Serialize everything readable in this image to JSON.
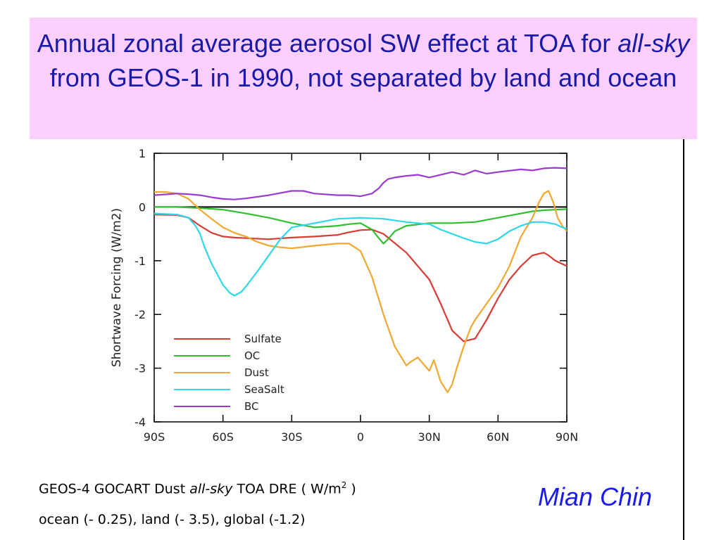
{
  "slide": {
    "title_part1": "Annual zonal average aerosol SW effect at TOA for",
    "title_italic": "all-sky",
    "title_part2": "from GEOS-1 in 1990, not separated by land and ocean",
    "caption_line1_a": "GEOS-4 GOCART Dust",
    "caption_line1_italic": "all-sky",
    "caption_line1_b": "TOA DRE ( W/m",
    "caption_line1_sup": "2",
    "caption_line1_c": " )",
    "caption_line2": "ocean (- 0.25),  land (- 3.5),  global (-1.2)",
    "author": "Mian Chin"
  },
  "chart_data": {
    "type": "line",
    "ylabel": "Shortwave Forcing (W/m2)",
    "xlim": [
      -90,
      90
    ],
    "ylim": [
      -4,
      1
    ],
    "x_ticks": [
      -90,
      -60,
      -30,
      0,
      30,
      60,
      90
    ],
    "x_tick_labels": [
      "90S",
      "60S",
      "30S",
      "0",
      "30N",
      "60N",
      "90N"
    ],
    "y_ticks": [
      1,
      0,
      -1,
      -2,
      -3,
      -4
    ],
    "y_tick_labels": [
      "1",
      "0",
      "-1",
      "-2",
      "-3",
      "-4"
    ],
    "legend_position": "lower-left",
    "series": [
      {
        "name": "Sulfate",
        "color": "#d93b35",
        "x": [
          -90,
          -80,
          -75,
          -70,
          -65,
          -60,
          -55,
          -50,
          -40,
          -30,
          -20,
          -10,
          -5,
          0,
          5,
          10,
          20,
          30,
          35,
          40,
          45,
          50,
          55,
          60,
          65,
          70,
          75,
          80,
          82,
          85,
          90
        ],
        "y": [
          -0.14,
          -0.15,
          -0.2,
          -0.35,
          -0.48,
          -0.55,
          -0.57,
          -0.58,
          -0.6,
          -0.57,
          -0.55,
          -0.52,
          -0.47,
          -0.43,
          -0.42,
          -0.5,
          -0.85,
          -1.35,
          -1.8,
          -2.3,
          -2.5,
          -2.45,
          -2.1,
          -1.7,
          -1.35,
          -1.1,
          -0.9,
          -0.85,
          -0.9,
          -1.0,
          -1.1
        ]
      },
      {
        "name": "OC",
        "color": "#2ec02e",
        "x": [
          -90,
          -80,
          -70,
          -60,
          -50,
          -40,
          -30,
          -20,
          -10,
          -5,
          0,
          5,
          8,
          10,
          12,
          15,
          20,
          30,
          40,
          50,
          60,
          70,
          75,
          80,
          85,
          90
        ],
        "y": [
          0.0,
          0.0,
          -0.02,
          -0.05,
          -0.12,
          -0.2,
          -0.3,
          -0.38,
          -0.35,
          -0.32,
          -0.3,
          -0.42,
          -0.58,
          -0.68,
          -0.6,
          -0.45,
          -0.35,
          -0.3,
          -0.3,
          -0.28,
          -0.2,
          -0.12,
          -0.08,
          -0.06,
          -0.05,
          -0.04
        ]
      },
      {
        "name": "Dust",
        "color": "#f0a830",
        "x": [
          -90,
          -85,
          -80,
          -75,
          -70,
          -65,
          -60,
          -55,
          -50,
          -45,
          -40,
          -35,
          -30,
          -20,
          -15,
          -10,
          -5,
          0,
          5,
          10,
          15,
          20,
          22,
          25,
          27,
          30,
          32,
          35,
          38,
          40,
          42,
          45,
          48,
          50,
          55,
          60,
          65,
          70,
          75,
          78,
          80,
          82,
          84,
          86,
          88,
          90
        ],
        "y": [
          0.28,
          0.28,
          0.25,
          0.15,
          -0.05,
          -0.22,
          -0.38,
          -0.48,
          -0.55,
          -0.65,
          -0.72,
          -0.75,
          -0.77,
          -0.72,
          -0.7,
          -0.68,
          -0.68,
          -0.82,
          -1.3,
          -2.0,
          -2.6,
          -2.95,
          -2.88,
          -2.8,
          -2.9,
          -3.05,
          -2.85,
          -3.25,
          -3.45,
          -3.3,
          -3.0,
          -2.6,
          -2.25,
          -2.1,
          -1.8,
          -1.5,
          -1.1,
          -0.55,
          -0.2,
          0.1,
          0.25,
          0.3,
          0.1,
          -0.2,
          -0.35,
          -0.45
        ]
      },
      {
        "name": "SeaSalt",
        "color": "#2fd8e8",
        "x": [
          -90,
          -80,
          -75,
          -72,
          -70,
          -68,
          -65,
          -60,
          -57,
          -55,
          -52,
          -50,
          -45,
          -40,
          -35,
          -30,
          -20,
          -10,
          0,
          10,
          20,
          30,
          35,
          40,
          45,
          50,
          55,
          60,
          65,
          70,
          75,
          80,
          85,
          88,
          90
        ],
        "y": [
          -0.12,
          -0.14,
          -0.2,
          -0.35,
          -0.5,
          -0.75,
          -1.05,
          -1.45,
          -1.6,
          -1.65,
          -1.58,
          -1.48,
          -1.2,
          -0.9,
          -0.6,
          -0.38,
          -0.3,
          -0.22,
          -0.2,
          -0.22,
          -0.28,
          -0.32,
          -0.42,
          -0.5,
          -0.58,
          -0.65,
          -0.68,
          -0.6,
          -0.45,
          -0.35,
          -0.28,
          -0.28,
          -0.32,
          -0.38,
          -0.4
        ]
      },
      {
        "name": "BC",
        "color": "#9a3ad2",
        "x": [
          -90,
          -80,
          -75,
          -70,
          -65,
          -60,
          -55,
          -50,
          -40,
          -30,
          -25,
          -20,
          -10,
          -5,
          0,
          5,
          8,
          10,
          12,
          15,
          20,
          25,
          30,
          35,
          40,
          45,
          50,
          55,
          60,
          70,
          75,
          80,
          85,
          90
        ],
        "y": [
          0.22,
          0.25,
          0.24,
          0.22,
          0.18,
          0.15,
          0.14,
          0.16,
          0.22,
          0.3,
          0.3,
          0.25,
          0.22,
          0.22,
          0.2,
          0.25,
          0.35,
          0.45,
          0.52,
          0.55,
          0.58,
          0.6,
          0.55,
          0.6,
          0.65,
          0.6,
          0.68,
          0.62,
          0.65,
          0.7,
          0.68,
          0.72,
          0.73,
          0.72
        ]
      }
    ]
  }
}
